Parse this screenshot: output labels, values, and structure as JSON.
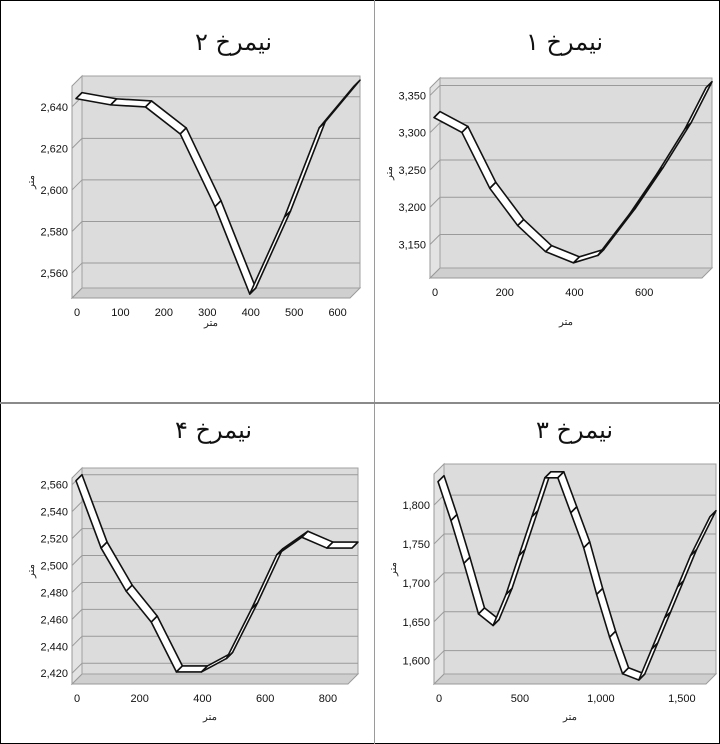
{
  "chart_data": [
    {
      "type": "line",
      "title": "نیمرخ ۱",
      "xlabel": "متر",
      "ylabel": "متر",
      "xlim": [
        0,
        780
      ],
      "ylim": [
        3105,
        3360
      ],
      "x_ticks": [
        "0",
        "200",
        "400",
        "600"
      ],
      "y_ticks": [
        "3,150",
        "3,200",
        "3,250",
        "3,300",
        "3,350"
      ],
      "series": [
        {
          "x": [
            0,
            80,
            160,
            240,
            320,
            400,
            470,
            560,
            640,
            720,
            780
          ],
          "y": [
            3315,
            3295,
            3220,
            3170,
            3135,
            3120,
            3130,
            3185,
            3240,
            3300,
            3355
          ]
        }
      ]
    },
    {
      "type": "line",
      "title": "نیمرخ ۲",
      "xlabel": "متر",
      "ylabel": "متر",
      "xlim": [
        0,
        640
      ],
      "ylim": [
        2548,
        2650
      ],
      "x_ticks": [
        "0",
        "100",
        "200",
        "300",
        "400",
        "500",
        "600"
      ],
      "y_ticks": [
        "2,560",
        "2,580",
        "2,600",
        "2,620",
        "2,640"
      ],
      "series": [
        {
          "x": [
            0,
            80,
            160,
            240,
            320,
            400,
            480,
            560,
            640
          ],
          "y": [
            2642,
            2639,
            2638,
            2625,
            2590,
            2548,
            2585,
            2628,
            2648
          ]
        }
      ]
    },
    {
      "type": "line",
      "title": "نیمرخ ۳",
      "xlabel": "متر",
      "ylabel": "متر",
      "xlim": [
        0,
        1680
      ],
      "ylim": [
        1570,
        1840
      ],
      "x_ticks": [
        "0",
        "500",
        "1,000",
        "1,500"
      ],
      "y_ticks": [
        "1,600",
        "1,650",
        "1,700",
        "1,750",
        "1,800"
      ],
      "series": [
        {
          "x": [
            0,
            80,
            160,
            250,
            340,
            420,
            500,
            580,
            660,
            740,
            820,
            900,
            980,
            1060,
            1140,
            1240,
            1320,
            1400,
            1480,
            1560,
            1680
          ],
          "y": [
            1825,
            1775,
            1720,
            1655,
            1640,
            1680,
            1730,
            1780,
            1830,
            1830,
            1785,
            1740,
            1680,
            1625,
            1578,
            1570,
            1610,
            1650,
            1690,
            1730,
            1780
          ]
        }
      ]
    },
    {
      "type": "line",
      "title": "نیمرخ ۴",
      "xlabel": "متر",
      "ylabel": "متر",
      "xlim": [
        0,
        880
      ],
      "ylim": [
        2412,
        2565
      ],
      "x_ticks": [
        "0",
        "200",
        "400",
        "600",
        "800"
      ],
      "y_ticks": [
        "2,420",
        "2,440",
        "2,460",
        "2,480",
        "2,500",
        "2,520",
        "2,540",
        "2,560"
      ],
      "series": [
        {
          "x": [
            0,
            80,
            160,
            240,
            320,
            400,
            480,
            560,
            640,
            720,
            800,
            880
          ],
          "y": [
            2560,
            2510,
            2478,
            2455,
            2418,
            2418,
            2428,
            2465,
            2505,
            2518,
            2510,
            2510
          ]
        }
      ]
    }
  ]
}
